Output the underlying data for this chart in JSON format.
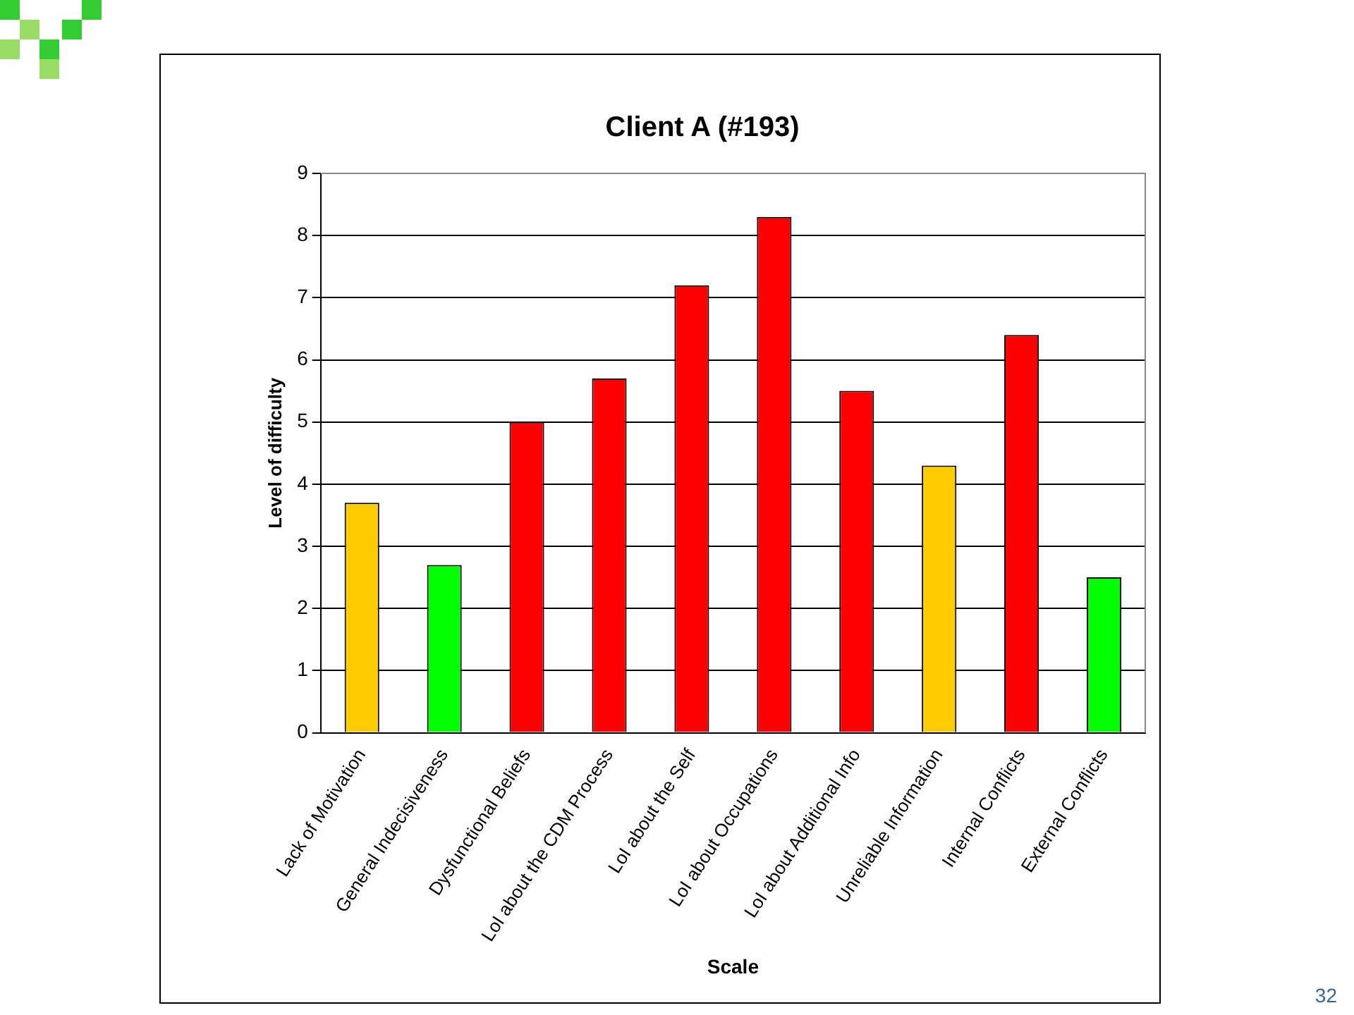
{
  "chart_data": {
    "type": "bar",
    "title": "Client A (#193)",
    "xlabel": "Scale",
    "ylabel": "Level of difficulty",
    "categories": [
      "Lack of Motivation",
      "General Indecisiveness",
      "Dysfunctional Beliefs",
      "LoI about the CDM Process",
      "LoI about the Self",
      "LoI about Occupations",
      "LoI about Additional Info",
      "Unreliable Information",
      "Internal Conflicts",
      "External Conflicts"
    ],
    "values": [
      3.7,
      2.7,
      5.0,
      5.7,
      7.2,
      8.3,
      5.5,
      4.3,
      6.4,
      2.5
    ],
    "colors": [
      "#ffcc00",
      "#00ff00",
      "#ff0000",
      "#ff0000",
      "#ff0000",
      "#ff0000",
      "#ff0000",
      "#ffcc00",
      "#ff0000",
      "#00ff00"
    ],
    "ylim": [
      0,
      9
    ],
    "yticks": [
      0,
      1,
      2,
      3,
      4,
      5,
      6,
      7,
      8,
      9
    ],
    "grid": "y",
    "legend": false,
    "annotations": [
      "32"
    ]
  }
}
